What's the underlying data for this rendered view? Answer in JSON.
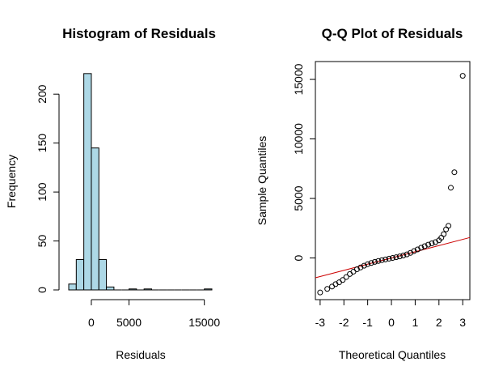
{
  "chart_data": [
    {
      "type": "bar",
      "title": "Histogram of Residuals",
      "xlabel": "Residuals",
      "ylabel": "Frequency",
      "xlim": [
        -3000,
        16000
      ],
      "ylim": [
        0,
        225
      ],
      "x_ticks": [
        {
          "value": 0,
          "label": "0"
        },
        {
          "value": 5000,
          "label": "5000"
        },
        {
          "value": 15000,
          "label": "15000"
        }
      ],
      "y_ticks": [
        {
          "value": 0,
          "label": "0"
        },
        {
          "value": 50,
          "label": "50"
        },
        {
          "value": 100,
          "label": "100"
        },
        {
          "value": 150,
          "label": "150"
        },
        {
          "value": 200,
          "label": "200"
        }
      ],
      "bins": [
        {
          "from": -3000,
          "to": -2000,
          "count": 6
        },
        {
          "from": -2000,
          "to": -1000,
          "count": 31
        },
        {
          "from": -1000,
          "to": 0,
          "count": 221
        },
        {
          "from": 0,
          "to": 1000,
          "count": 145
        },
        {
          "from": 1000,
          "to": 2000,
          "count": 31
        },
        {
          "from": 2000,
          "to": 3000,
          "count": 3
        },
        {
          "from": 3000,
          "to": 4000,
          "count": 0
        },
        {
          "from": 4000,
          "to": 5000,
          "count": 0
        },
        {
          "from": 5000,
          "to": 6000,
          "count": 1
        },
        {
          "from": 6000,
          "to": 7000,
          "count": 0
        },
        {
          "from": 7000,
          "to": 8000,
          "count": 1
        },
        {
          "from": 8000,
          "to": 9000,
          "count": 0
        },
        {
          "from": 9000,
          "to": 10000,
          "count": 0
        },
        {
          "from": 10000,
          "to": 11000,
          "count": 0
        },
        {
          "from": 11000,
          "to": 12000,
          "count": 0
        },
        {
          "from": 12000,
          "to": 13000,
          "count": 0
        },
        {
          "from": 13000,
          "to": 14000,
          "count": 0
        },
        {
          "from": 14000,
          "to": 15000,
          "count": 0
        },
        {
          "from": 15000,
          "to": 16000,
          "count": 1
        }
      ],
      "bar_fill": "#add8e6",
      "bar_stroke": "#000000"
    },
    {
      "type": "scatter",
      "title": "Q-Q Plot of Residuals",
      "xlabel": "Theoretical Quantiles",
      "ylabel": "Sample Quantiles",
      "xlim": [
        -3.2,
        3.3
      ],
      "ylim": [
        -3500,
        16500
      ],
      "x_ticks": [
        {
          "value": -3,
          "label": "-3"
        },
        {
          "value": -2,
          "label": "-2"
        },
        {
          "value": -1,
          "label": "-1"
        },
        {
          "value": 0,
          "label": "0"
        },
        {
          "value": 1,
          "label": "1"
        },
        {
          "value": 2,
          "label": "2"
        },
        {
          "value": 3,
          "label": "3"
        }
      ],
      "y_ticks": [
        {
          "value": 0,
          "label": "0"
        },
        {
          "value": 5000,
          "label": "5000"
        },
        {
          "value": 10000,
          "label": "10000"
        },
        {
          "value": 15000,
          "label": "15000"
        }
      ],
      "grid": false,
      "qq_line": {
        "intercept": 0,
        "slope": 520,
        "color": "#cc0000"
      },
      "points": {
        "x": [
          -3.0,
          -2.7,
          -2.5,
          -2.35,
          -2.2,
          -2.05,
          -1.9,
          -1.75,
          -1.6,
          -1.45,
          -1.3,
          -1.15,
          -1.0,
          -0.85,
          -0.7,
          -0.55,
          -0.4,
          -0.25,
          -0.1,
          0.05,
          0.2,
          0.35,
          0.5,
          0.65,
          0.8,
          0.95,
          1.1,
          1.25,
          1.4,
          1.55,
          1.7,
          1.85,
          2.0,
          2.1,
          2.2,
          2.3,
          2.4,
          2.5,
          2.65,
          3.0
        ],
        "y": [
          -2900,
          -2600,
          -2400,
          -2200,
          -2050,
          -1850,
          -1600,
          -1350,
          -1150,
          -950,
          -800,
          -650,
          -520,
          -420,
          -330,
          -250,
          -180,
          -120,
          -60,
          0,
          60,
          130,
          210,
          300,
          430,
          580,
          720,
          860,
          990,
          1120,
          1230,
          1330,
          1480,
          1700,
          2000,
          2400,
          2700,
          5900,
          7200,
          15300
        ]
      }
    }
  ]
}
